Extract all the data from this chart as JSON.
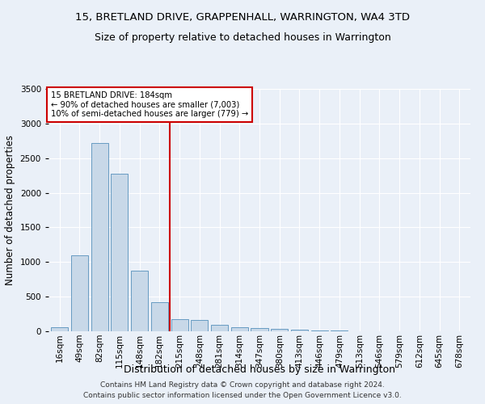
{
  "title_line1": "15, BRETLAND DRIVE, GRAPPENHALL, WARRINGTON, WA4 3TD",
  "title_line2": "Size of property relative to detached houses in Warrington",
  "xlabel": "Distribution of detached houses by size in Warrington",
  "ylabel": "Number of detached properties",
  "categories": [
    "16sqm",
    "49sqm",
    "82sqm",
    "115sqm",
    "148sqm",
    "182sqm",
    "215sqm",
    "248sqm",
    "281sqm",
    "314sqm",
    "347sqm",
    "380sqm",
    "413sqm",
    "446sqm",
    "479sqm",
    "513sqm",
    "546sqm",
    "579sqm",
    "612sqm",
    "645sqm",
    "678sqm"
  ],
  "values": [
    55,
    1100,
    2720,
    2270,
    880,
    415,
    175,
    165,
    90,
    60,
    48,
    30,
    20,
    15,
    10,
    5,
    5,
    3,
    2,
    2,
    2
  ],
  "bar_color": "#c8d8e8",
  "bar_edge_color": "#5590bb",
  "vline_x": 5.5,
  "vline_color": "#cc0000",
  "annotation_title": "15 BRETLAND DRIVE: 184sqm",
  "annotation_line1": "← 90% of detached houses are smaller (7,003)",
  "annotation_line2": "10% of semi-detached houses are larger (779) →",
  "annotation_box_color": "#ffffff",
  "annotation_box_edge": "#cc0000",
  "ylim": [
    0,
    3500
  ],
  "yticks": [
    0,
    500,
    1000,
    1500,
    2000,
    2500,
    3000,
    3500
  ],
  "bg_color": "#eaf0f8",
  "footer_line1": "Contains HM Land Registry data © Crown copyright and database right 2024.",
  "footer_line2": "Contains public sector information licensed under the Open Government Licence v3.0.",
  "title_fontsize": 9.5,
  "subtitle_fontsize": 9,
  "xlabel_fontsize": 9,
  "ylabel_fontsize": 8.5,
  "tick_fontsize": 7.5,
  "footer_fontsize": 6.5
}
